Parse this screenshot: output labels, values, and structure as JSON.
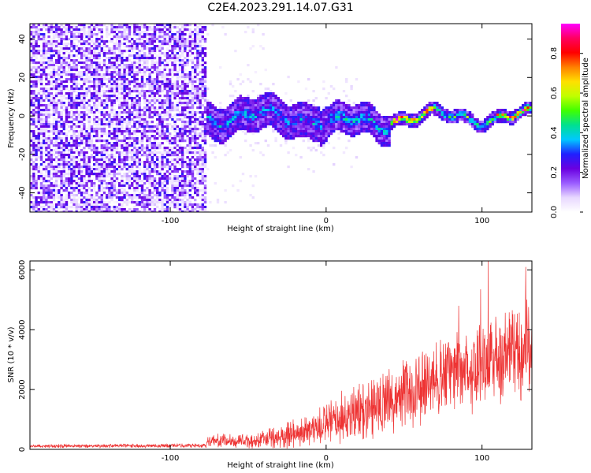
{
  "figure": {
    "title": "C2E4.2023.291.14.07.G31"
  },
  "chart_data": [
    {
      "type": "heatmap",
      "xlabel": "Height of straight line (km)",
      "ylabel": "Frequency (Hz)",
      "xlim": [
        -190,
        132
      ],
      "ylim": [
        -50,
        48
      ],
      "xticks": [
        {
          "value": -100,
          "label": "-100"
        },
        {
          "value": 0,
          "label": "0"
        },
        {
          "value": 100,
          "label": "100"
        }
      ],
      "yticks": [
        {
          "value": 40,
          "label": "40"
        },
        {
          "value": 20,
          "label": "20"
        },
        {
          "value": 0,
          "label": "0"
        },
        {
          "value": -20,
          "label": "-20"
        },
        {
          "value": -40,
          "label": "-40"
        }
      ],
      "description_bands": [
        {
          "x_range": [
            -190,
            -77
          ],
          "content": "broadband noise, amplitude ~0.2-0.4"
        },
        {
          "x_range": [
            -77,
            132
          ],
          "content": "narrow signal band around 0 Hz, amplitude up to ~0.9"
        }
      ],
      "colorbar": {
        "label": "Normalized spectral amplitude",
        "range": [
          0,
          0.95
        ],
        "ticks": [
          {
            "value": 0.0,
            "label": "0.0"
          },
          {
            "value": 0.2,
            "label": "0.2"
          },
          {
            "value": 0.4,
            "label": "0.4"
          },
          {
            "value": 0.6,
            "label": "0.6"
          },
          {
            "value": 0.8,
            "label": "0.8"
          }
        ],
        "colors": [
          "#ffffff",
          "#e8d8ff",
          "#9a5cff",
          "#6a00e0",
          "#2020ff",
          "#00c8ff",
          "#00e090",
          "#40ff00",
          "#c0ff00",
          "#ffe000",
          "#ff8000",
          "#ff0000",
          "#ff0060",
          "#ff00ff"
        ]
      }
    },
    {
      "type": "line",
      "xlabel": "Height of straight line (km)",
      "ylabel": "SNR (10 * v/v)",
      "xlim": [
        -190,
        132
      ],
      "ylim": [
        0,
        6300
      ],
      "xticks": [
        {
          "value": -100,
          "label": "-100"
        },
        {
          "value": 0,
          "label": "0"
        },
        {
          "value": 100,
          "label": "100"
        }
      ],
      "yticks": [
        {
          "value": 0,
          "label": "0"
        },
        {
          "value": 2000,
          "label": "2000"
        },
        {
          "value": 4000,
          "label": "4000"
        },
        {
          "value": 6000,
          "label": "6000"
        }
      ],
      "color": "#ee3333",
      "trend": [
        {
          "x": -190,
          "mean": 110,
          "spread": 70
        },
        {
          "x": -77,
          "mean": 130,
          "spread": 80
        },
        {
          "x": -76,
          "mean": 280,
          "spread": 250
        },
        {
          "x": -50,
          "mean": 280,
          "spread": 300
        },
        {
          "x": -30,
          "mean": 380,
          "spread": 450
        },
        {
          "x": -10,
          "mean": 650,
          "spread": 700
        },
        {
          "x": 10,
          "mean": 1000,
          "spread": 1000
        },
        {
          "x": 30,
          "mean": 1500,
          "spread": 1200
        },
        {
          "x": 50,
          "mean": 1800,
          "spread": 1300
        },
        {
          "x": 70,
          "mean": 2300,
          "spread": 1500
        },
        {
          "x": 90,
          "mean": 2700,
          "spread": 1700
        },
        {
          "x": 110,
          "mean": 3100,
          "spread": 1900
        },
        {
          "x": 132,
          "mean": 3400,
          "spread": 2000
        }
      ],
      "peaks": [
        {
          "x": 104,
          "y": 6300
        },
        {
          "x": 128,
          "y": 6100
        },
        {
          "x": 99,
          "y": 5350
        },
        {
          "x": 85,
          "y": 4800
        }
      ]
    }
  ]
}
